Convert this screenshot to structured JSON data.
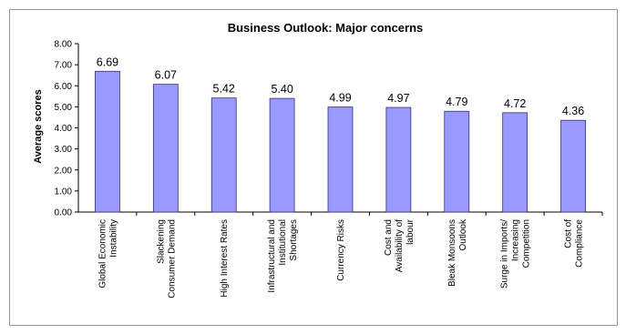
{
  "chart_data": {
    "type": "bar",
    "title": "Business Outlook: Major concerns",
    "xlabel": "",
    "ylabel": "Average scores",
    "ylim": [
      0,
      8
    ],
    "yticks": [
      "0.00",
      "1.00",
      "2.00",
      "3.00",
      "4.00",
      "5.00",
      "6.00",
      "7.00",
      "8.00"
    ],
    "grid": false,
    "legend": "none",
    "bar_color": "#9999ff",
    "categories": [
      [
        "Global Economic",
        "Instability"
      ],
      [
        "Slackening",
        "Consumer Demand"
      ],
      [
        "High Interest Rates"
      ],
      [
        "Infrastructural and",
        "Institutional",
        "Shortages"
      ],
      [
        "Currency Risks"
      ],
      [
        "Cost and",
        "Availability of",
        "labour"
      ],
      [
        "Bleak Monsoons",
        "Outlook"
      ],
      [
        "Surge in Imports/",
        "Increasing",
        "Competition"
      ],
      [
        "Cost of",
        "Compliance"
      ]
    ],
    "values": [
      6.69,
      6.07,
      5.42,
      5.4,
      4.99,
      4.97,
      4.79,
      4.72,
      4.36
    ],
    "value_labels": [
      "6.69",
      "6.07",
      "5.42",
      "5.40",
      "4.99",
      "4.97",
      "4.79",
      "4.72",
      "4.36"
    ]
  }
}
